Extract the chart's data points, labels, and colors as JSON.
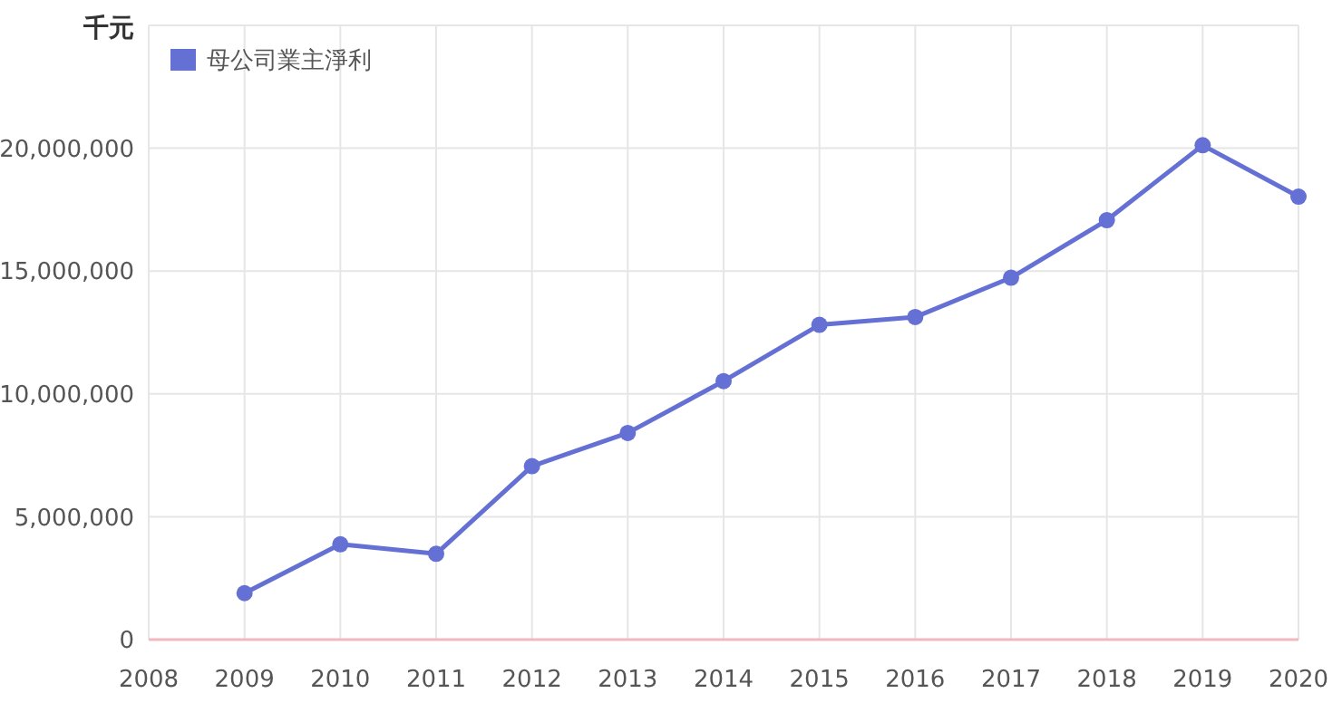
{
  "chart_data": {
    "type": "line",
    "ylabel": "千元",
    "x": [
      2009,
      2010,
      2011,
      2012,
      2013,
      2014,
      2015,
      2016,
      2017,
      2018,
      2019,
      2020
    ],
    "series": [
      {
        "name": "母公司業主淨利",
        "color": "#6470d4",
        "values": [
          1890000,
          3880000,
          3490000,
          7060000,
          8410000,
          10520000,
          12810000,
          13130000,
          14730000,
          17070000,
          20120000,
          18030000
        ]
      }
    ],
    "xlim": [
      2008,
      2020
    ],
    "xticks": [
      2008,
      2009,
      2010,
      2011,
      2012,
      2013,
      2014,
      2015,
      2016,
      2017,
      2018,
      2019,
      2020
    ],
    "ylim": [
      0,
      25000000
    ],
    "yticks": [
      {
        "value": 0,
        "label": "0"
      },
      {
        "value": 5000000,
        "label": "5,000,000"
      },
      {
        "value": 10000000,
        "label": "10,000,000"
      },
      {
        "value": 15000000,
        "label": "15,000,000"
      },
      {
        "value": 20000000,
        "label": "20,000,000"
      },
      {
        "value": 25000000,
        "label": null
      }
    ],
    "grid": true,
    "legend": "top left",
    "marker": "circle",
    "line_style": "solid"
  }
}
